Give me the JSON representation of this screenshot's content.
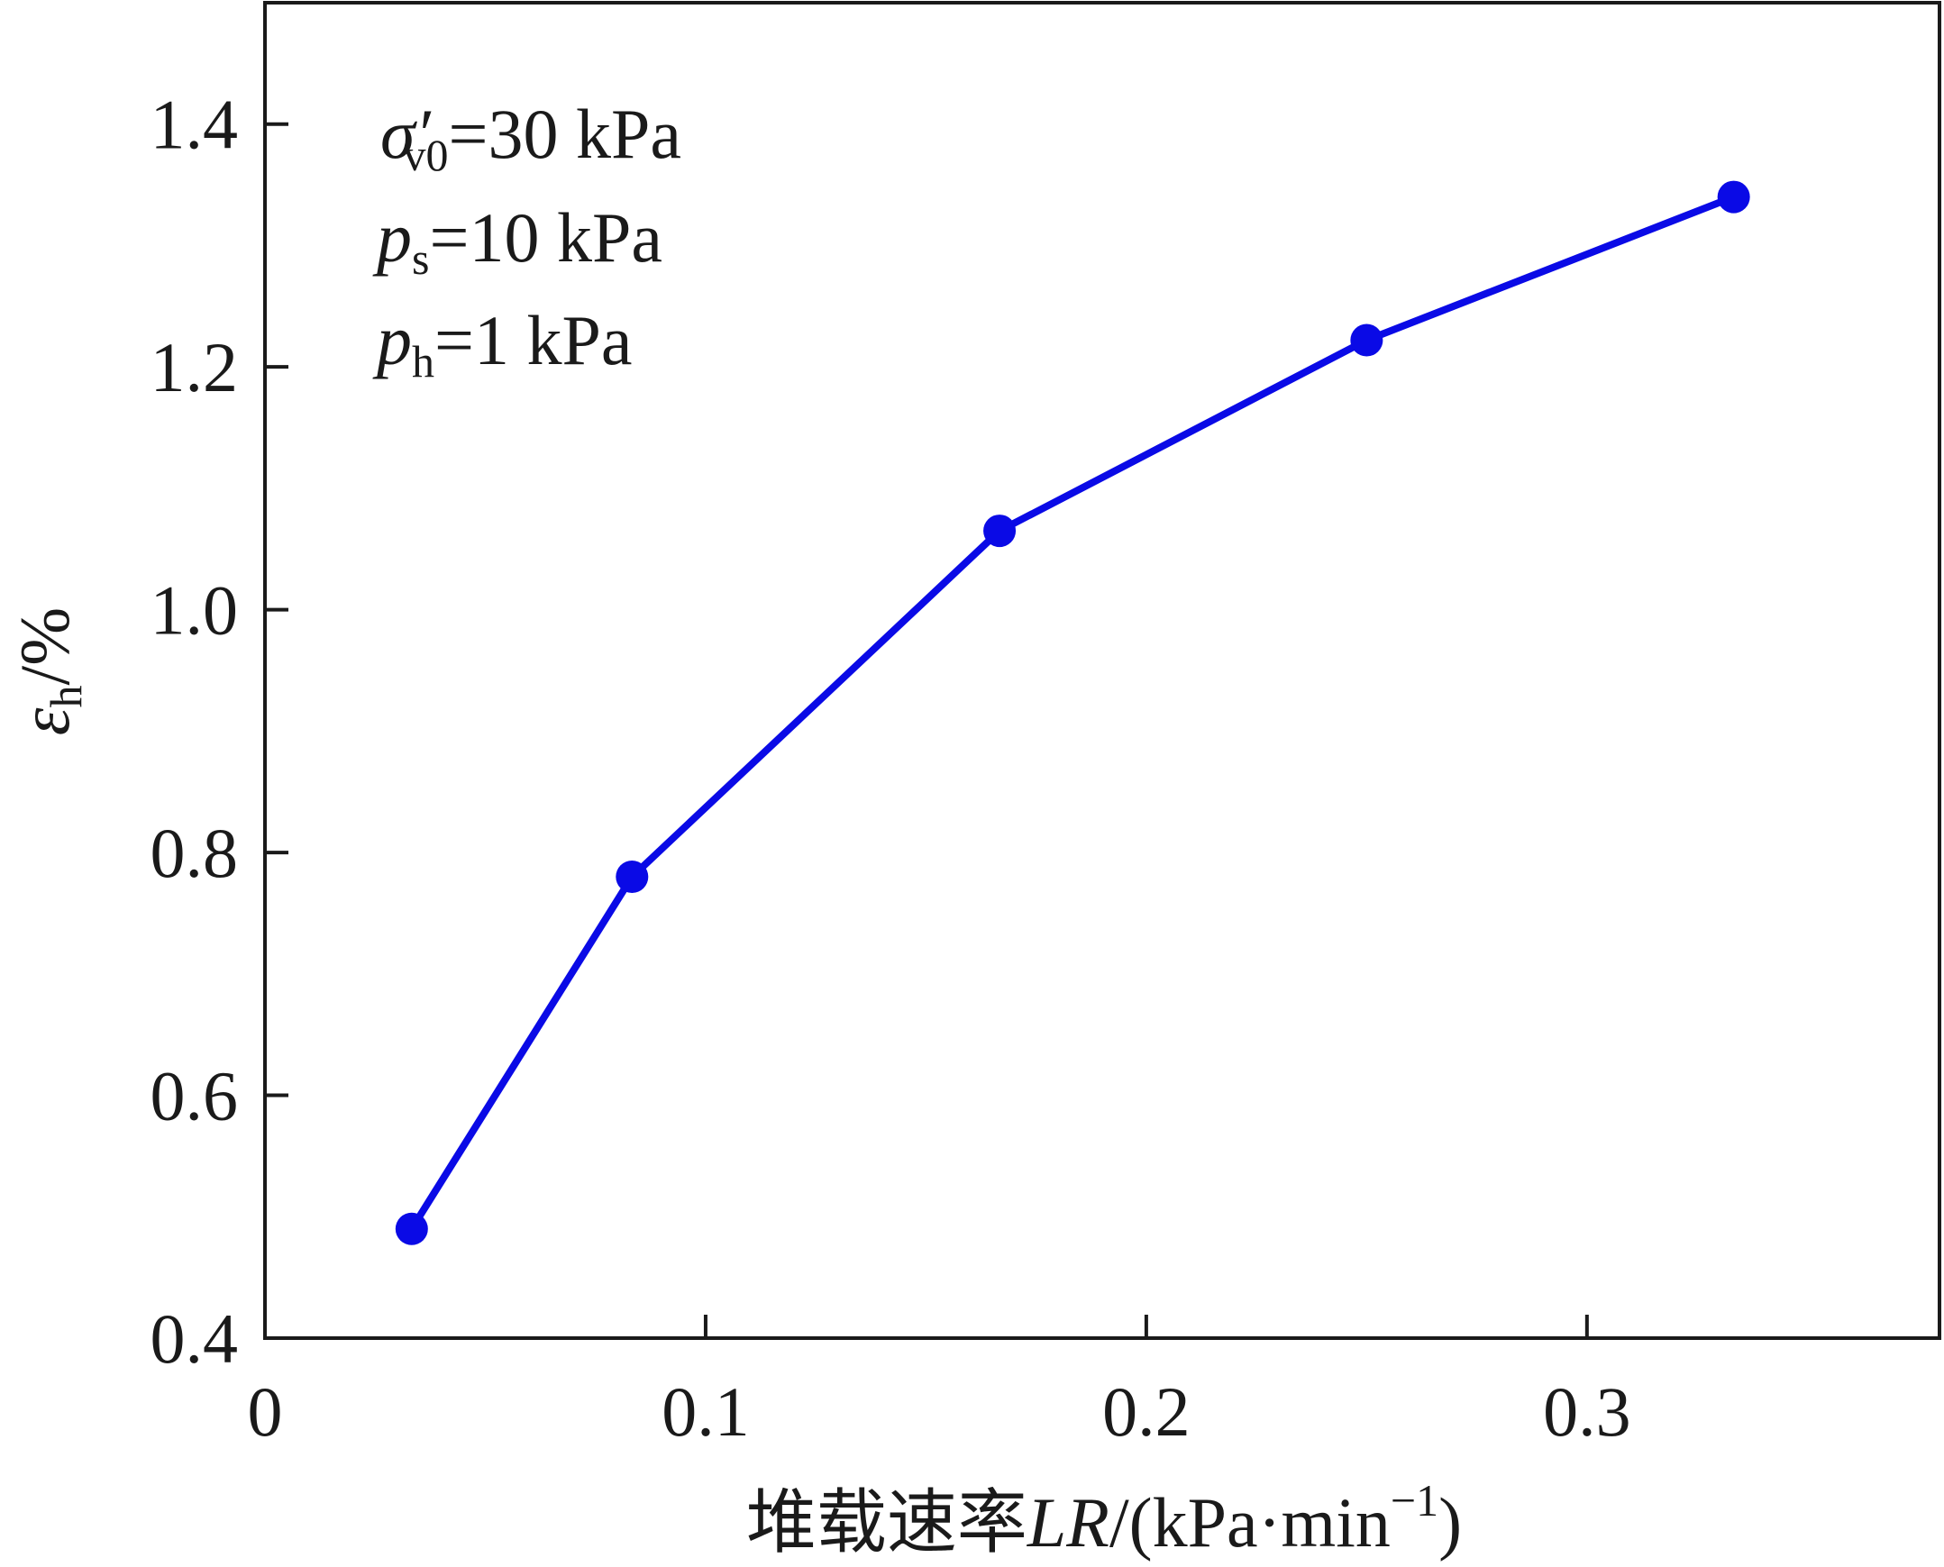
{
  "chart_data": {
    "type": "line",
    "xlabel": {
      "prefix": "堆载速率",
      "variable": "LR",
      "units": "/(kPa·min",
      "exponent": "−1",
      "close": ")"
    },
    "ylabel": {
      "symbol": "ε",
      "subscript": "h",
      "unit": "/%"
    },
    "xlim": [
      0,
      0.38
    ],
    "ylim": [
      0.4,
      1.5
    ],
    "x_ticks": [
      {
        "value": 0,
        "label": "0"
      },
      {
        "value": 0.1,
        "label": "0.1"
      },
      {
        "value": 0.2,
        "label": "0.2"
      },
      {
        "value": 0.3,
        "label": "0.3"
      }
    ],
    "y_ticks": [
      {
        "value": 0.4,
        "label": "0.4"
      },
      {
        "value": 0.6,
        "label": "0.6"
      },
      {
        "value": 0.8,
        "label": "0.8"
      },
      {
        "value": 1.0,
        "label": "1.0"
      },
      {
        "value": 1.2,
        "label": "1.2"
      },
      {
        "value": 1.4,
        "label": "1.4"
      }
    ],
    "grid": false,
    "series": [
      {
        "color": "#0a0ae6",
        "marker": "circle",
        "x": [
          0.0333,
          0.0833,
          0.1667,
          0.25,
          0.3333
        ],
        "y": [
          0.49,
          0.78,
          1.065,
          1.222,
          1.34
        ]
      }
    ],
    "annotations": [
      {
        "symbol": "σ",
        "prime": "′",
        "subscript": "v0",
        "value": "=30 kPa"
      },
      {
        "symbol": "p",
        "subscript": "s",
        "value": "=10 kPa"
      },
      {
        "symbol": "p",
        "subscript": "h",
        "value": "=1 kPa"
      }
    ]
  }
}
